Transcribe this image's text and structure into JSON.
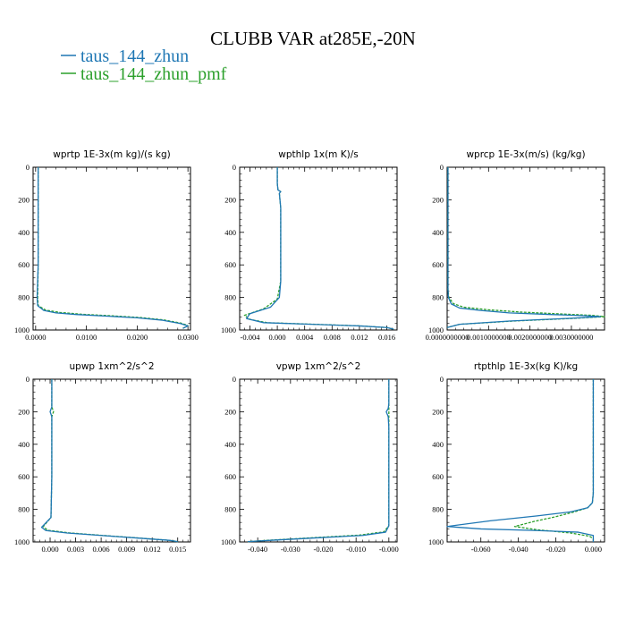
{
  "figure": {
    "title": "CLUBB VAR at285E,-20N",
    "colors": {
      "zhun": "#1f77b4",
      "zhun_pmf": "#2ca02c"
    },
    "legend": [
      {
        "label": "taus_144_zhun",
        "color": "#1f77b4"
      },
      {
        "label": "taus_144_zhun_pmf",
        "color": "#2ca02c"
      }
    ]
  },
  "chart_data": [
    {
      "type": "line",
      "title": "wprtp  1E-3x(m kg)/(s kg)",
      "xlim": [
        -0.0005,
        0.0305
      ],
      "ylim": [
        1000,
        0
      ],
      "invert_y": true,
      "xticks": [
        0,
        0.01,
        0.02,
        0.03
      ],
      "xtick_labels": [
        "0.0000",
        "0.0100",
        "0.0200",
        "0.0300"
      ],
      "yticks": [
        0,
        200,
        400,
        600,
        800,
        1000
      ],
      "ytick_labels": [
        "0",
        "200",
        "400",
        "600",
        "800",
        "1000"
      ],
      "series": [
        {
          "name": "taus_144_zhun",
          "color": "#1f77b4",
          "x": [
            0.0005,
            0.0005,
            0.0005,
            0.0005,
            0.0005,
            0.0005,
            0.0003,
            0.0004,
            0.0016,
            0.004,
            0.008,
            0.014,
            0.02,
            0.025,
            0.0285,
            0.03,
            0.029
          ],
          "y": [
            0,
            100,
            200,
            300,
            400,
            600,
            800,
            850,
            880,
            895,
            905,
            915,
            925,
            940,
            960,
            975,
            990
          ]
        },
        {
          "name": "taus_144_zhun_pmf",
          "color": "#2ca02c",
          "x": [
            0.0005,
            0.0005,
            0.0005,
            0.0005,
            0.0005,
            0.0005,
            0.0004,
            0.0005,
            0.002,
            0.0048,
            0.009,
            0.015,
            0.0205,
            0.0252,
            0.0287,
            0.03,
            0.029
          ],
          "y": [
            0,
            100,
            200,
            300,
            400,
            600,
            800,
            850,
            878,
            892,
            903,
            913,
            923,
            938,
            958,
            973,
            990
          ]
        }
      ]
    },
    {
      "type": "line",
      "title": "wpthlp  1x(m K)/s",
      "xlim": [
        -0.0055,
        0.0175
      ],
      "ylim": [
        1000,
        0
      ],
      "invert_y": true,
      "xticks": [
        -0.004,
        0,
        0.004,
        0.008,
        0.012,
        0.016
      ],
      "xtick_labels": [
        "-0.004",
        "0.000",
        "0.004",
        "0.008",
        "0.012",
        "0.016"
      ],
      "yticks": [
        0,
        200,
        400,
        600,
        800,
        1000
      ],
      "ytick_labels": [
        "0",
        "200",
        "400",
        "600",
        "800",
        "1000"
      ],
      "series": [
        {
          "name": "taus_144_zhun",
          "color": "#1f77b4",
          "x": [
            0.0,
            0.0,
            0.0001,
            0.0005,
            0.0003,
            0.0005,
            0.0005,
            0.0005,
            0.0003,
            -0.001,
            -0.004,
            -0.0045,
            -0.002,
            0.005,
            0.012,
            0.016,
            0.017
          ],
          "y": [
            0,
            100,
            140,
            150,
            160,
            250,
            400,
            700,
            800,
            860,
            900,
            930,
            955,
            965,
            975,
            985,
            995
          ]
        },
        {
          "name": "taus_144_zhun_pmf",
          "color": "#2ca02c",
          "x": [
            0.0,
            0.0,
            0.0001,
            0.0005,
            0.0003,
            0.0005,
            0.0005,
            0.0005,
            0.0,
            -0.002,
            -0.0048,
            -0.004,
            -0.0015,
            0.0055,
            0.0122,
            0.016,
            0.017
          ],
          "y": [
            0,
            100,
            140,
            150,
            160,
            250,
            400,
            700,
            810,
            870,
            910,
            935,
            955,
            965,
            975,
            985,
            995
          ]
        }
      ]
    },
    {
      "type": "line",
      "title": "wprcp  1E-3x(m/s) (kg/kg)",
      "xlim": [
        0.0,
        0.0038
      ],
      "ylim": [
        1000,
        0
      ],
      "invert_y": true,
      "xticks": [
        0,
        0.001,
        0.002,
        0.003
      ],
      "xtick_labels": [
        "0.0000000000",
        "0.0010000000",
        "0.0020000000",
        "0.0030000000"
      ],
      "yticks": [
        0,
        200,
        400,
        600,
        800,
        1000
      ],
      "ytick_labels": [
        "0",
        "200",
        "400",
        "600",
        "800",
        "1000"
      ],
      "series": [
        {
          "name": "taus_144_zhun",
          "color": "#1f77b4",
          "x": [
            2e-05,
            2e-05,
            2e-05,
            2e-05,
            2e-05,
            3e-05,
            0.0001,
            0.0003,
            0.0008,
            0.0015,
            0.0025,
            0.0033,
            0.0037,
            0.003,
            0.0015,
            0.0003,
            0.0
          ],
          "y": [
            0,
            200,
            400,
            600,
            750,
            800,
            840,
            865,
            880,
            895,
            905,
            912,
            918,
            928,
            945,
            965,
            985
          ]
        },
        {
          "name": "taus_144_zhun_pmf",
          "color": "#2ca02c",
          "x": [
            2e-05,
            2e-05,
            2e-05,
            2e-05,
            2e-05,
            4e-05,
            0.00015,
            0.0004,
            0.001,
            0.0018,
            0.0028,
            0.0035,
            0.0038,
            0.0031,
            0.0016,
            0.0003,
            0.0
          ],
          "y": [
            0,
            200,
            400,
            600,
            750,
            800,
            838,
            860,
            876,
            890,
            902,
            910,
            918,
            928,
            945,
            965,
            985
          ]
        }
      ]
    },
    {
      "type": "line",
      "title": "upwp  1xm^2/s^2",
      "xlim": [
        -0.002,
        0.0165
      ],
      "ylim": [
        1000,
        0
      ],
      "invert_y": true,
      "xticks": [
        0,
        0.003,
        0.006,
        0.009,
        0.012,
        0.015
      ],
      "xtick_labels": [
        "0.000",
        "0.003",
        "0.006",
        "0.009",
        "0.012",
        "0.015"
      ],
      "yticks": [
        0,
        200,
        400,
        600,
        800,
        1000
      ],
      "ytick_labels": [
        "0",
        "200",
        "400",
        "600",
        "800",
        "1000"
      ],
      "series": [
        {
          "name": "taus_144_zhun",
          "color": "#1f77b4",
          "x": [
            0.0002,
            0.0002,
            0.0002,
            0.0,
            0.0002,
            0.0002,
            0.0002,
            0.0001,
            -0.001,
            -0.0005,
            0.002,
            0.006,
            0.01,
            0.014,
            0.015
          ],
          "y": [
            0,
            100,
            170,
            200,
            230,
            300,
            600,
            850,
            910,
            930,
            945,
            960,
            975,
            990,
            998
          ]
        },
        {
          "name": "taus_144_zhun_pmf",
          "color": "#2ca02c",
          "x": [
            0.0002,
            0.0002,
            0.0002,
            0.0004,
            0.0002,
            0.0002,
            0.0002,
            0.0001,
            -0.0008,
            -0.0003,
            0.0022,
            0.0062,
            0.0102,
            0.014,
            0.015
          ],
          "y": [
            0,
            100,
            170,
            200,
            230,
            300,
            600,
            850,
            905,
            928,
            944,
            960,
            975,
            990,
            998
          ]
        }
      ]
    },
    {
      "type": "line",
      "title": "vpwp  1xm^2/s^2",
      "xlim": [
        -0.0455,
        0.0025
      ],
      "ylim": [
        1000,
        0
      ],
      "invert_y": true,
      "xticks": [
        -0.04,
        -0.03,
        -0.02,
        -0.01,
        0
      ],
      "xtick_labels": [
        "-0.040",
        "-0.030",
        "-0.020",
        "-0.010",
        "-0.000"
      ],
      "yticks": [
        0,
        200,
        400,
        600,
        800,
        1000
      ],
      "ytick_labels": [
        "0",
        "200",
        "400",
        "600",
        "800",
        "1000"
      ],
      "series": [
        {
          "name": "taus_144_zhun",
          "color": "#1f77b4",
          "x": [
            0.0,
            0.0,
            -0.0002,
            -0.0008,
            -0.0002,
            0.0,
            0.0,
            0.0,
            -0.001,
            -0.008,
            -0.022,
            -0.036,
            -0.043
          ],
          "y": [
            0,
            150,
            180,
            200,
            230,
            300,
            600,
            900,
            940,
            960,
            975,
            990,
            998
          ]
        },
        {
          "name": "taus_144_zhun_pmf",
          "color": "#2ca02c",
          "x": [
            0.0,
            0.0,
            0.0,
            0.0,
            0.0,
            0.0,
            0.0,
            0.0,
            -0.0015,
            -0.009,
            -0.023,
            -0.037,
            -0.043
          ],
          "y": [
            0,
            150,
            180,
            200,
            230,
            300,
            600,
            900,
            938,
            958,
            974,
            990,
            998
          ]
        }
      ]
    },
    {
      "type": "line",
      "title": "rtpthlp  1E-3x(kg K)/kg",
      "xlim": [
        -0.078,
        0.006
      ],
      "ylim": [
        1000,
        0
      ],
      "invert_y": true,
      "xticks": [
        -0.06,
        -0.04,
        -0.02,
        0
      ],
      "xtick_labels": [
        "-0.060",
        "-0.040",
        "-0.020",
        "0.000"
      ],
      "yticks": [
        0,
        200,
        400,
        600,
        800,
        1000
      ],
      "ytick_labels": [
        "0",
        "200",
        "400",
        "600",
        "800",
        "1000"
      ],
      "series": [
        {
          "name": "taus_144_zhun",
          "color": "#1f77b4",
          "x": [
            0.0,
            0.0,
            0.0,
            -0.0005,
            -0.003,
            -0.012,
            -0.03,
            -0.055,
            -0.078,
            -0.06,
            -0.03,
            -0.008,
            0.0,
            0.0
          ],
          "y": [
            0,
            300,
            700,
            760,
            790,
            815,
            840,
            870,
            905,
            920,
            930,
            940,
            960,
            1000
          ]
        },
        {
          "name": "taus_144_zhun_pmf",
          "color": "#2ca02c",
          "x": [
            0.0,
            0.0,
            0.0,
            -0.0005,
            -0.003,
            -0.01,
            -0.02,
            -0.032,
            -0.042,
            -0.03,
            -0.012,
            -0.002,
            0.0,
            0.0
          ],
          "y": [
            0,
            300,
            700,
            760,
            790,
            815,
            845,
            875,
            905,
            925,
            945,
            965,
            980,
            1000
          ]
        }
      ]
    }
  ]
}
